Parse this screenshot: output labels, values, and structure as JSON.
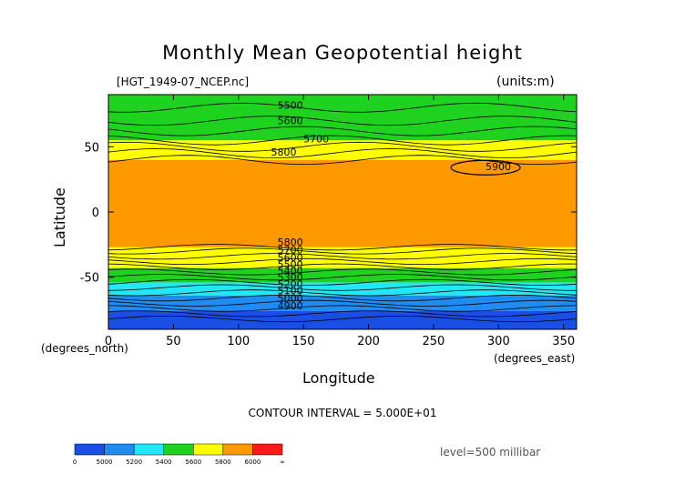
{
  "header": {
    "title": "Monthly Mean Geopotential height",
    "file": "[HGT_1949-07_NCEP.nc]",
    "units": "(units:m)"
  },
  "axes": {
    "ylabel": "Latitude",
    "yunits": "(degrees_north)",
    "xlabel": "Longitude",
    "xunits": "(degrees_east)"
  },
  "footer": {
    "interval": "CONTOUR INTERVAL = 5.000E+01",
    "level": "level=500 millibar"
  },
  "chart_data": {
    "type": "heatmap",
    "title": "Monthly Mean Geopotential height",
    "xlabel": "Longitude",
    "ylabel": "Latitude",
    "xlim": [
      0,
      360
    ],
    "ylim": [
      -90,
      90
    ],
    "xticks": [
      0,
      50,
      100,
      150,
      200,
      250,
      300,
      350
    ],
    "yticks": [
      -50,
      0,
      50
    ],
    "grid": false,
    "contour_interval": 50,
    "level_mb": 500,
    "bands": [
      {
        "lat_range": [
          -90,
          -76
        ],
        "range_m": [
          4900,
          5000
        ],
        "color": "#1a4fe6"
      },
      {
        "lat_range": [
          -76,
          -64
        ],
        "range_m": [
          5000,
          5200
        ],
        "color": "#1e8cf0"
      },
      {
        "lat_range": [
          -64,
          -54
        ],
        "range_m": [
          5200,
          5400
        ],
        "color": "#22e8f5"
      },
      {
        "lat_range": [
          -54,
          -43
        ],
        "range_m": [
          5400,
          5600
        ],
        "color": "#1fd21f"
      },
      {
        "lat_range": [
          -43,
          -27
        ],
        "range_m": [
          5600,
          5800
        ],
        "color": "#ffff00"
      },
      {
        "lat_range": [
          -27,
          40
        ],
        "range_m": [
          5800,
          6000
        ],
        "color": "#ff9900"
      },
      {
        "lat_range": [
          40,
          55
        ],
        "range_m": [
          5600,
          5800
        ],
        "color": "#ffff00"
      },
      {
        "lat_range": [
          55,
          90
        ],
        "range_m": [
          5400,
          5600
        ],
        "color": "#1fd21f"
      }
    ],
    "contour_labels": [
      {
        "text": "5500",
        "lon": 130,
        "lat": 82
      },
      {
        "text": "5600",
        "lon": 130,
        "lat": 70
      },
      {
        "text": "5700",
        "lon": 150,
        "lat": 56
      },
      {
        "text": "5800",
        "lon": 125,
        "lat": 46
      },
      {
        "text": "5900",
        "lon": 290,
        "lat": 35
      },
      {
        "text": "5800",
        "lon": 130,
        "lat": -23
      },
      {
        "text": "5700",
        "lon": 130,
        "lat": -29
      },
      {
        "text": "5600",
        "lon": 130,
        "lat": -35
      },
      {
        "text": "5500",
        "lon": 130,
        "lat": -40
      },
      {
        "text": "5400",
        "lon": 130,
        "lat": -45
      },
      {
        "text": "5300",
        "lon": 130,
        "lat": -50
      },
      {
        "text": "5200",
        "lon": 130,
        "lat": -55
      },
      {
        "text": "5100",
        "lon": 130,
        "lat": -60
      },
      {
        "text": "5000",
        "lon": 130,
        "lat": -66
      },
      {
        "text": "4900",
        "lon": 130,
        "lat": -72
      }
    ],
    "colorbar": {
      "labels": [
        "0",
        "5000",
        "5200",
        "5400",
        "5600",
        "5800",
        "6000",
        "∞"
      ],
      "colors": [
        "#1a4fe6",
        "#1e8cf0",
        "#22e8f5",
        "#1fd21f",
        "#ffff00",
        "#ff9900",
        "#ff1a1a"
      ]
    }
  }
}
